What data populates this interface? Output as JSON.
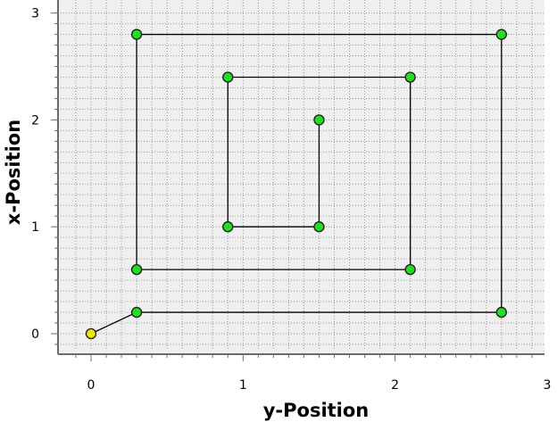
{
  "chart_data": {
    "type": "scatter",
    "title": "",
    "xlabel": "y-Position",
    "ylabel": "x-Position",
    "xlim": [
      -0.15,
      3.0
    ],
    "ylim": [
      -0.1,
      3.05
    ],
    "xticks": [
      "0",
      "1",
      "2",
      "3"
    ],
    "yticks": [
      "0",
      "1",
      "2",
      "3"
    ],
    "grid": true,
    "legend": "none",
    "colors": {
      "background": "#efefef",
      "grid": "#9a9a9a",
      "line": "#000000",
      "point_fill": "#22dd22",
      "start_point_fill": "#f2e600",
      "axis": "#6b6b6b"
    },
    "series": [
      {
        "points": [
          {
            "x": 0.0,
            "y": 0.0
          },
          {
            "x": 0.3,
            "y": 0.2
          },
          {
            "x": 2.7,
            "y": 0.2
          },
          {
            "x": 2.7,
            "y": 2.8
          },
          {
            "x": 0.3,
            "y": 2.8
          },
          {
            "x": 0.3,
            "y": 0.6
          },
          {
            "x": 2.1,
            "y": 0.6
          },
          {
            "x": 2.1,
            "y": 2.4
          },
          {
            "x": 0.9,
            "y": 2.4
          },
          {
            "x": 0.9,
            "y": 1.0
          },
          {
            "x": 1.5,
            "y": 1.0
          },
          {
            "x": 1.5,
            "y": 2.0
          }
        ]
      }
    ]
  }
}
